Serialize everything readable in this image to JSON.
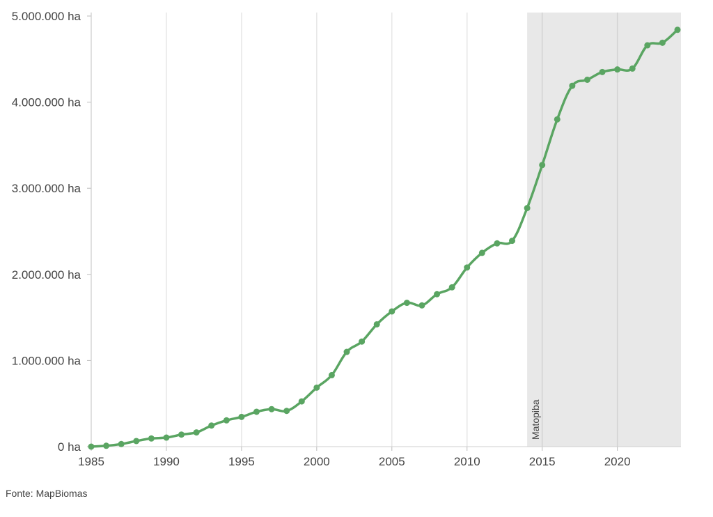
{
  "chart_data": {
    "type": "line",
    "title": "",
    "xlabel": "",
    "ylabel": "",
    "xlim": [
      1985,
      2024
    ],
    "ylim": [
      0,
      5000000
    ],
    "x_ticks": [
      1985,
      1990,
      1995,
      2000,
      2005,
      2010,
      2015,
      2020
    ],
    "y_ticks": [
      0,
      1000000,
      2000000,
      3000000,
      4000000,
      5000000
    ],
    "y_tick_labels": [
      "0 ha",
      "1.000.000 ha",
      "2.000.000 ha",
      "3.000.000 ha",
      "4.000.000 ha",
      "5.000.000 ha"
    ],
    "grid": "vertical",
    "line_color": "#5aa562",
    "shaded_region": {
      "x_start": 2014,
      "x_end": 2024,
      "label": "Matopiba",
      "color": "#e8e8e8"
    },
    "series": [
      {
        "x": [
          1985,
          1986,
          1987,
          1988,
          1989,
          1990,
          1991,
          1992,
          1993,
          1994,
          1995,
          1996,
          1997,
          1998,
          1999,
          2000,
          2001,
          2002,
          2003,
          2004,
          2005,
          2006,
          2007,
          2008,
          2009,
          2010,
          2011,
          2012,
          2013,
          2014,
          2015,
          2016,
          2017,
          2018,
          2019,
          2020,
          2021,
          2022,
          2023,
          2024
        ],
        "values": [
          0,
          10000,
          30000,
          65000,
          95000,
          105000,
          140000,
          165000,
          245000,
          305000,
          345000,
          405000,
          435000,
          415000,
          525000,
          685000,
          830000,
          1100000,
          1220000,
          1420000,
          1570000,
          1670000,
          1640000,
          1770000,
          1850000,
          2080000,
          2250000,
          2360000,
          2390000,
          2770000,
          3270000,
          3800000,
          4190000,
          4260000,
          4350000,
          4380000,
          4390000,
          4660000,
          4690000,
          4840000
        ]
      }
    ]
  },
  "source": "Fonte: MapBiomas"
}
